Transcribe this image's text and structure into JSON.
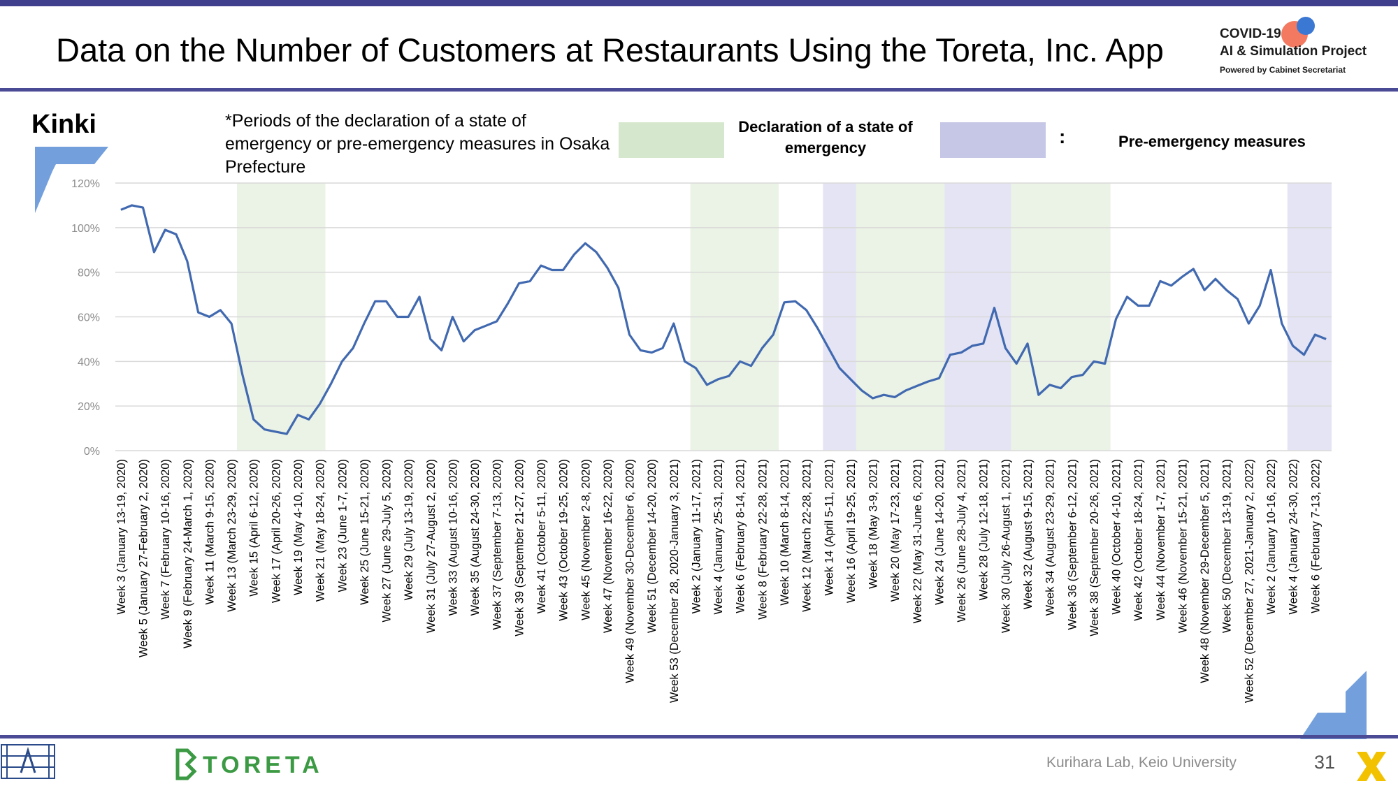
{
  "header": {
    "title": "Data on the Number of Customers at Restaurants Using the Toreta, Inc. App",
    "project_line1": "COVID-19",
    "project_line2": "AI & Simulation Project",
    "project_line3": "Powered by Cabinet Secretariat"
  },
  "region": "Kinki",
  "note": "*Periods of the declaration of a state of emergency or pre-emergency measures in Osaka Prefecture",
  "legend": {
    "emergency_label": "Declaration of a state of emergency",
    "emergency_color": "#d5e8cd",
    "separator": ":",
    "pre_label": "Pre-emergency measures",
    "pre_color": "#c6c6e6"
  },
  "chart_data": {
    "type": "line",
    "title": "",
    "xlabel": "",
    "ylabel": "",
    "ylim": [
      0,
      1.2
    ],
    "y_ticks": [
      0,
      0.2,
      0.4,
      0.6,
      0.8,
      1.0,
      1.2
    ],
    "y_tick_labels": [
      "0%",
      "20%",
      "40%",
      "60%",
      "80%",
      "100%",
      "120%"
    ],
    "grid": true,
    "line_color": "#4169b0",
    "x": [
      "Week 3 (January 13-19, 2020)",
      "",
      "Week 5 (January 27-February 2, 2020)",
      "",
      "Week 7 (February 10-16, 2020)",
      "",
      "Week 9 (February 24-March 1, 2020)",
      "",
      "Week 11 (March 9-15, 2020)",
      "",
      "Week 13 (March 23-29, 2020)",
      "",
      "Week 15 (April 6-12, 2020)",
      "",
      "Week 17 (April 20-26, 2020)",
      "",
      "Week 19 (May 4-10, 2020)",
      "",
      "Week 21 (May 18-24, 2020)",
      "",
      "Week 23 (June 1-7, 2020)",
      "",
      "Week 25 (June 15-21, 2020)",
      "",
      "Week 27 (June 29-July 5, 2020)",
      "",
      "Week 29 (July 13-19, 2020)",
      "",
      "Week 31 (July 27-August 2, 2020)",
      "",
      "Week 33 (August 10-16, 2020)",
      "",
      "Week 35 (August 24-30, 2020)",
      "",
      "Week 37 (September 7-13, 2020)",
      "",
      "Week 39 (September 21-27, 2020)",
      "",
      "Week 41 (October 5-11, 2020)",
      "",
      "Week 43 (October 19-25, 2020)",
      "",
      "Week 45 (November 2-8, 2020)",
      "",
      "Week 47 (November 16-22, 2020)",
      "",
      "Week 49 (November 30-December 6, 2020)",
      "",
      "Week 51 (December 14-20, 2020)",
      "",
      "Week 53 (December 28, 2020-January 3, 2021)",
      "",
      "Week 2 (January 11-17, 2021)",
      "",
      "Week 4 (January 25-31, 2021)",
      "",
      "Week 6 (February 8-14, 2021)",
      "",
      "Week 8 (February 22-28, 2021)",
      "",
      "Week 10 (March 8-14, 2021)",
      "",
      "Week 12 (March 22-28, 2021)",
      "",
      "Week 14 (April 5-11, 2021)",
      "",
      "Week 16 (April 19-25, 2021)",
      "",
      "Week 18 (May 3-9, 2021)",
      "",
      "Week 20 (May 17-23, 2021)",
      "",
      "Week 22 (May 31-June 6, 2021)",
      "",
      "Week 24 (June 14-20, 2021)",
      "",
      "Week 26 (June 28-July 4, 2021)",
      "",
      "Week 28 (July 12-18, 2021)",
      "",
      "Week 30 (July 26-August 1, 2021)",
      "",
      "Week 32 (August 9-15, 2021)",
      "",
      "Week 34 (August 23-29, 2021)",
      "",
      "Week 36 (September 6-12, 2021)",
      "",
      "Week 38 (September 20-26, 2021)",
      "",
      "Week 40 (October 4-10, 2021)",
      "",
      "Week 42 (October 18-24, 2021)",
      "",
      "Week 44 (November 1-7, 2021)",
      "",
      "Week 46 (November 15-21, 2021)",
      "",
      "Week 48 (November 29-December 5, 2021)",
      "",
      "Week 50 (December 13-19, 2021)",
      "",
      "Week 52 (December 27, 2021-January 2, 2022)",
      "",
      "Week 2 (January 10-16, 2022)",
      "",
      "Week 4 (January 24-30, 2022)",
      "",
      "Week 6 (February 7-13, 2022)",
      ""
    ],
    "series": [
      {
        "values": [
          1.08,
          1.1,
          1.09,
          0.89,
          0.99,
          0.97,
          0.85,
          0.62,
          0.6,
          0.63,
          0.57,
          0.34,
          0.14,
          0.095,
          0.085,
          0.075,
          0.16,
          0.14,
          0.21,
          0.3,
          0.4,
          0.46,
          0.57,
          0.67,
          0.67,
          0.6,
          0.6,
          0.69,
          0.5,
          0.45,
          0.6,
          0.49,
          0.54,
          0.56,
          0.58,
          0.66,
          0.75,
          0.76,
          0.83,
          0.81,
          0.81,
          0.88,
          0.93,
          0.89,
          0.82,
          0.73,
          0.52,
          0.45,
          0.44,
          0.46,
          0.57,
          0.4,
          0.37,
          0.295,
          0.32,
          0.335,
          0.4,
          0.38,
          0.46,
          0.52,
          0.665,
          0.67,
          0.63,
          0.55,
          0.46,
          0.37,
          0.32,
          0.27,
          0.235,
          0.25,
          0.24,
          0.27,
          0.29,
          0.31,
          0.325,
          0.43,
          0.44,
          0.47,
          0.48,
          0.64,
          0.46,
          0.39,
          0.48,
          0.25,
          0.295,
          0.28,
          0.33,
          0.34,
          0.4,
          0.39,
          0.59,
          0.69,
          0.65,
          0.65,
          0.76,
          0.74,
          0.78,
          0.815,
          0.72,
          0.77,
          0.72,
          0.68,
          0.57,
          0.65,
          0.81,
          0.57,
          0.47,
          0.43,
          0.52,
          0.5
        ]
      }
    ],
    "shaded_periods": [
      {
        "kind": "emergency",
        "start": "Week 14 (March 30-April 5, 2020)",
        "end": "Week 21 (May 18-24, 2020)"
      },
      {
        "kind": "emergency",
        "start": "Week 2 (January 11-17, 2021)",
        "end": "Week 9 (March 1-7, 2021)"
      },
      {
        "kind": "pre",
        "start": "Week 14 (April 5-11, 2021)",
        "end": "Week 17 (April 26-May 2, 2021)"
      },
      {
        "kind": "emergency",
        "start": "Week 17 (April 26-May 2, 2021)",
        "end": "Week 25 (June 21-27, 2021)"
      },
      {
        "kind": "pre",
        "start": "Week 25 (June 21-27, 2021)",
        "end": "Week 31 (August 2-8, 2021)"
      },
      {
        "kind": "emergency",
        "start": "Week 31 (August 2-8, 2021)",
        "end": "Week 39 (September 27-October 3, 2021)"
      },
      {
        "kind": "pre",
        "start": "Week 4 (January 24-30, 2022)",
        "end": "Week 7 (February 14-20, 2022)"
      }
    ]
  },
  "footer": {
    "toreta": "TORETA",
    "lab": "Kurihara Lab, Keio University",
    "page": "31"
  }
}
